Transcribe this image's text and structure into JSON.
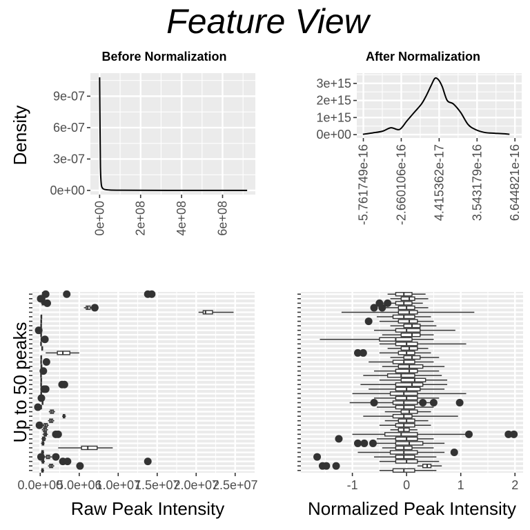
{
  "figure": {
    "title": "Feature View"
  },
  "chart_data": [
    {
      "id": "before-density",
      "type": "line",
      "title": "Before Normalization",
      "xlabel": "",
      "ylabel": "Density",
      "xlim": [
        -45000000.0,
        760000000.0
      ],
      "ylim": [
        -4e-08,
        1.12e-06
      ],
      "x_ticks": [
        0,
        200000000,
        400000000,
        600000000
      ],
      "x_tick_labels": [
        "0e+00",
        "2e+08",
        "4e+08",
        "6e+08"
      ],
      "y_ticks": [
        0,
        3e-07,
        6e-07,
        9e-07
      ],
      "y_tick_labels": [
        "0e+00",
        "3e-07",
        "6e-07",
        "9e-07"
      ],
      "grid": true,
      "x": [
        0,
        2000000,
        4000000,
        8000000,
        15000000,
        25000000,
        50000000,
        100000000,
        200000000,
        400000000,
        600000000,
        720000000
      ],
      "y": [
        1.08e-06,
        6e-07,
        2.2e-07,
        6e-08,
        2e-08,
        9e-09,
        4e-09,
        2e-09,
        1e-09,
        5e-10,
        2e-10,
        0
      ]
    },
    {
      "id": "after-density",
      "type": "line",
      "title": "After Normalization",
      "xlabel": "",
      "ylabel": "",
      "xlim": [
        -6.3e-16,
        7.2e-16
      ],
      "ylim": [
        -200000000000000.0,
        3600000000000000.0
      ],
      "x_ticks": [
        -5.761749e-16,
        -2.660106e-16,
        4.415362e-17,
        3.543179e-16,
        6.644821e-16
      ],
      "x_tick_labels": [
        "-5.761749e-16",
        "-2.660106e-16",
        "4.415362e-17",
        "3.543179e-16",
        "6.644821e-16"
      ],
      "y_ticks": [
        0,
        1000000000000000.0,
        2000000000000000.0,
        3000000000000000.0
      ],
      "y_tick_labels": [
        "0e+00",
        "1e+15",
        "2e+15",
        "3e+15"
      ],
      "grid": true,
      "x": [
        -5.8e-16,
        -5e-16,
        -4.2e-16,
        -3.5e-16,
        -2.8e-16,
        -2.2e-16,
        -1.6e-16,
        -1e-16,
        -6e-17,
        -2e-17,
        1e-17,
        4e-17,
        7e-17,
        1.1e-16,
        1.6e-16,
        2.2e-16,
        2.8e-16,
        3.4e-16,
        4.2e-16,
        5e-16,
        5.8e-16,
        6.2e-16
      ],
      "y": [
        20000000000000.0,
        100000000000000.0,
        200000000000000.0,
        400000000000000.0,
        300000000000000.0,
        800000000000000.0,
        1300000000000000.0,
        1800000000000000.0,
        2300000000000000.0,
        2900000000000000.0,
        3300000000000000.0,
        3200000000000000.0,
        2800000000000000.0,
        2000000000000000.0,
        1800000000000000.0,
        1300000000000000.0,
        600000000000000.0,
        300000000000000.0,
        120000000000000.0,
        80000000000000.0,
        50000000000000.0,
        20000000000000.0
      ]
    },
    {
      "id": "raw-boxplot",
      "type": "boxplot",
      "orientation": "horizontal",
      "title": "",
      "xlabel": "Raw Peak Intensity",
      "ylabel": "Up to 50 peaks",
      "xlim": [
        -1000000.0,
        27500000.0
      ],
      "x_ticks": [
        0,
        5000000,
        10000000,
        15000000,
        20000000,
        25000000
      ],
      "x_tick_labels": [
        "0.0e+00",
        "5.0e+06",
        "1.0e+07",
        "1.5e+07",
        "2.0e+07",
        "2.5e+07"
      ],
      "grid": true,
      "categories": 40,
      "boxes": [
        {
          "min": 200000,
          "q1": 300000,
          "median": 400000,
          "q3": 500000,
          "max": 700000,
          "outliers": [
            700000,
            3400000,
            13800000,
            14300000
          ]
        },
        {
          "min": 100000,
          "q1": 200000,
          "median": 280000,
          "q3": 350000,
          "max": 450000,
          "outliers": [
            60000,
            120000,
            180000
          ]
        },
        {
          "min": 100000,
          "q1": 250000,
          "median": 330000,
          "q3": 420000,
          "max": 550000,
          "outliers": [
            900000
          ]
        },
        {
          "min": 5600000,
          "q1": 5900000,
          "median": 6100000,
          "q3": 6400000,
          "max": 6700000,
          "outliers": [
            7000000
          ]
        },
        {
          "min": 20300000,
          "q1": 20900000,
          "median": 21200000,
          "q3": 22100000,
          "max": 24800000,
          "outliers": []
        },
        {
          "min": 50000,
          "q1": 100000,
          "median": 140000,
          "q3": 190000,
          "max": 240000,
          "outliers": []
        },
        {
          "min": 40000,
          "q1": 80000,
          "median": 120000,
          "q3": 160000,
          "max": 220000,
          "outliers": []
        },
        {
          "min": 30000,
          "q1": 70000,
          "median": 110000,
          "q3": 150000,
          "max": 200000,
          "outliers": []
        },
        {
          "min": 50000,
          "q1": 100000,
          "median": 150000,
          "q3": 200000,
          "max": 300000,
          "outliers": [
            -200000
          ]
        },
        {
          "min": 30000,
          "q1": 70000,
          "median": 110000,
          "q3": 150000,
          "max": 210000,
          "outliers": []
        },
        {
          "min": 50000,
          "q1": 110000,
          "median": 160000,
          "q3": 220000,
          "max": 300000,
          "outliers": [
            600000
          ]
        },
        {
          "min": 20000,
          "q1": 60000,
          "median": 100000,
          "q3": 140000,
          "max": 200000,
          "outliers": []
        },
        {
          "min": 150000,
          "q1": 200000,
          "median": 250000,
          "q3": 300000,
          "max": 350000,
          "outliers": []
        },
        {
          "min": 700000,
          "q1": 2200000,
          "median": 2900000,
          "q3": 3800000,
          "max": 5000000,
          "outliers": []
        },
        {
          "min": 40000,
          "q1": 80000,
          "median": 120000,
          "q3": 160000,
          "max": 220000,
          "outliers": []
        },
        {
          "min": 30000,
          "q1": 70000,
          "median": 110000,
          "q3": 150000,
          "max": 200000,
          "outliers": [
            800000
          ]
        },
        {
          "min": 50000,
          "q1": 100000,
          "median": 150000,
          "q3": 200000,
          "max": 280000,
          "outliers": []
        },
        {
          "min": 30000,
          "q1": 60000,
          "median": 100000,
          "q3": 140000,
          "max": 200000,
          "outliers": [
            400000
          ]
        },
        {
          "min": 20000,
          "q1": 60000,
          "median": 100000,
          "q3": 140000,
          "max": 200000,
          "outliers": []
        },
        {
          "min": 40000,
          "q1": 80000,
          "median": 120000,
          "q3": 160000,
          "max": 220000,
          "outliers": []
        },
        {
          "min": 30000,
          "q1": 70000,
          "median": 110000,
          "q3": 150000,
          "max": 210000,
          "outliers": [
            2800000,
            3100000
          ]
        },
        {
          "min": 50000,
          "q1": 100000,
          "median": 140000,
          "q3": 190000,
          "max": 260000,
          "outliers": [
            500000,
            700000
          ]
        },
        {
          "min": 40000,
          "q1": 80000,
          "median": 120000,
          "q3": 160000,
          "max": 230000,
          "outliers": []
        },
        {
          "min": 30000,
          "q1": 60000,
          "median": 100000,
          "q3": 140000,
          "max": 200000,
          "outliers": [
            150000
          ]
        },
        {
          "min": 200000,
          "q1": 250000,
          "median": 300000,
          "q3": 350000,
          "max": 400000,
          "outliers": []
        },
        {
          "min": 30000,
          "q1": 70000,
          "median": 110000,
          "q3": 150000,
          "max": 200000,
          "outliers": [
            -300000
          ]
        },
        {
          "min": 1100000,
          "q1": 1300000,
          "median": 1500000,
          "q3": 1700000,
          "max": 1900000,
          "outliers": []
        },
        {
          "min": 2800000,
          "q1": 2950000,
          "median": 3050000,
          "q3": 3150000,
          "max": 3300000,
          "outliers": []
        },
        {
          "min": 1000000,
          "q1": 1200000,
          "median": 1400000,
          "q3": 1600000,
          "max": 1800000,
          "outliers": []
        },
        {
          "min": 200000,
          "q1": 500000,
          "median": 700000,
          "q3": 900000,
          "max": 1100000,
          "outliers": [
            -100000
          ]
        },
        {
          "min": 200000,
          "q1": 400000,
          "median": 600000,
          "q3": 800000,
          "max": 1000000,
          "outliers": []
        },
        {
          "min": 300000,
          "q1": 500000,
          "median": 650000,
          "q3": 800000,
          "max": 1000000,
          "outliers": [
            2000000,
            2300000
          ]
        },
        {
          "min": 150000,
          "q1": 300000,
          "median": 450000,
          "q3": 600000,
          "max": 750000,
          "outliers": []
        },
        {
          "min": 100000,
          "q1": 250000,
          "median": 350000,
          "q3": 450000,
          "max": 550000,
          "outliers": []
        },
        {
          "min": 2300000,
          "q1": 5300000,
          "median": 6100000,
          "q3": 7300000,
          "max": 9300000,
          "outliers": []
        },
        {
          "min": 100000,
          "q1": 200000,
          "median": 300000,
          "q3": 400000,
          "max": 500000,
          "outliers": []
        },
        {
          "min": 500000,
          "q1": 800000,
          "median": 1000000,
          "q3": 1200000,
          "max": 1500000,
          "outliers": [
            2000000,
            100000
          ]
        },
        {
          "min": 100000,
          "q1": 250000,
          "median": 350000,
          "q3": 450000,
          "max": 600000,
          "outliers": [
            2900000,
            3500000,
            13800000
          ]
        },
        {
          "min": 1000000,
          "q1": 1200000,
          "median": 1400000,
          "q3": 1600000,
          "max": 1800000,
          "outliers": [
            5100000
          ]
        },
        {
          "min": 100000,
          "q1": 200000,
          "median": 280000,
          "q3": 380000,
          "max": 500000,
          "outliers": []
        }
      ]
    },
    {
      "id": "normalized-boxplot",
      "type": "boxplot",
      "orientation": "horizontal",
      "title": "",
      "xlabel": "Normalized Peak Intensity",
      "ylabel": "",
      "xlim": [
        -1.95,
        2.15
      ],
      "x_ticks": [
        -1,
        0,
        1,
        2
      ],
      "x_tick_labels": [
        "-1",
        "0",
        "1",
        "2"
      ],
      "grid": true,
      "categories": 40,
      "boxes": [
        {
          "min": -0.35,
          "q1": -0.2,
          "median": -0.05,
          "q3": 0.1,
          "max": 0.35,
          "outliers": []
        },
        {
          "min": -0.3,
          "q1": -0.1,
          "median": 0.05,
          "q3": 0.15,
          "max": 0.4,
          "outliers": []
        },
        {
          "min": -0.45,
          "q1": -0.2,
          "median": -0.05,
          "q3": 0.1,
          "max": 0.3,
          "outliers": [
            -0.5,
            -0.35
          ]
        },
        {
          "min": -0.4,
          "q1": -0.15,
          "median": 0,
          "q3": 0.15,
          "max": 0.4,
          "outliers": [
            -0.6,
            -0.45
          ]
        },
        {
          "min": -1.2,
          "q1": -0.15,
          "median": 0.05,
          "q3": 0.2,
          "max": 1.25,
          "outliers": []
        },
        {
          "min": -0.55,
          "q1": -0.25,
          "median": -0.05,
          "q3": 0.15,
          "max": 0.45,
          "outliers": []
        },
        {
          "min": -0.5,
          "q1": -0.15,
          "median": 0.05,
          "q3": 0.2,
          "max": 0.5,
          "outliers": [
            -0.7
          ]
        },
        {
          "min": -0.3,
          "q1": -0.05,
          "median": 0.1,
          "q3": 0.25,
          "max": 0.55,
          "outliers": []
        },
        {
          "min": -0.6,
          "q1": -0.2,
          "median": 0,
          "q3": 0.25,
          "max": 0.9,
          "outliers": []
        },
        {
          "min": -0.45,
          "q1": -0.1,
          "median": 0.1,
          "q3": 0.25,
          "max": 0.5,
          "outliers": []
        },
        {
          "min": -1.6,
          "q1": -0.5,
          "median": -0.2,
          "q3": 0.1,
          "max": 0.5,
          "outliers": []
        },
        {
          "min": -0.5,
          "q1": -0.2,
          "median": 0,
          "q3": 0.2,
          "max": 1.1,
          "outliers": []
        },
        {
          "min": -0.35,
          "q1": -0.1,
          "median": 0.05,
          "q3": 0.2,
          "max": 0.4,
          "outliers": []
        },
        {
          "min": -0.5,
          "q1": -0.15,
          "median": 0,
          "q3": 0.15,
          "max": 0.45,
          "outliers": [
            -0.9,
            -0.8
          ]
        },
        {
          "min": -0.3,
          "q1": -0.05,
          "median": 0.1,
          "q3": 0.25,
          "max": 0.6,
          "outliers": []
        },
        {
          "min": -0.7,
          "q1": -0.25,
          "median": -0.05,
          "q3": 0.15,
          "max": 0.5,
          "outliers": []
        },
        {
          "min": -0.45,
          "q1": -0.15,
          "median": 0.05,
          "q3": 0.3,
          "max": 0.7,
          "outliers": []
        },
        {
          "min": -0.6,
          "q1": -0.2,
          "median": 0.05,
          "q3": 0.2,
          "max": 0.6,
          "outliers": []
        },
        {
          "min": -0.8,
          "q1": -0.35,
          "median": -0.1,
          "q3": 0.15,
          "max": 0.65,
          "outliers": []
        },
        {
          "min": -0.5,
          "q1": -0.1,
          "median": 0.15,
          "q3": 0.35,
          "max": 0.75,
          "outliers": []
        },
        {
          "min": -0.85,
          "q1": -0.2,
          "median": 0.1,
          "q3": 0.3,
          "max": 0.75,
          "outliers": []
        },
        {
          "min": -0.7,
          "q1": -0.2,
          "median": 0,
          "q3": 0.25,
          "max": 0.7,
          "outliers": []
        },
        {
          "min": -1.0,
          "q1": -0.3,
          "median": -0.05,
          "q3": 0.2,
          "max": 1.1,
          "outliers": []
        },
        {
          "min": -0.6,
          "q1": -0.2,
          "median": 0,
          "q3": 0.2,
          "max": 0.6,
          "outliers": []
        },
        {
          "min": -1.05,
          "q1": -0.25,
          "median": -0.05,
          "q3": 0.2,
          "max": 0.45,
          "outliers": [
            -0.6,
            0.3,
            0.5,
            0.98
          ]
        },
        {
          "min": -0.55,
          "q1": -0.2,
          "median": -0.05,
          "q3": 0.15,
          "max": 0.5,
          "outliers": []
        },
        {
          "min": -0.4,
          "q1": -0.1,
          "median": 0.05,
          "q3": 0.2,
          "max": 0.45,
          "outliers": []
        },
        {
          "min": -0.8,
          "q1": -0.25,
          "median": -0.05,
          "q3": 0.1,
          "max": 0.95,
          "outliers": []
        },
        {
          "min": -0.4,
          "q1": -0.15,
          "median": 0,
          "q3": 0.15,
          "max": 0.4,
          "outliers": []
        },
        {
          "min": -0.5,
          "q1": -0.2,
          "median": -0.05,
          "q3": 0.15,
          "max": 0.45,
          "outliers": []
        },
        {
          "min": -0.3,
          "q1": -0.15,
          "median": -0.05,
          "q3": 0.05,
          "max": 0.2,
          "outliers": []
        },
        {
          "min": -1.0,
          "q1": -0.4,
          "median": -0.1,
          "q3": 0.2,
          "max": 1.1,
          "outliers": [
            1.15,
            1.88,
            1.98
          ]
        },
        {
          "min": -0.55,
          "q1": -0.2,
          "median": 0,
          "q3": 0.2,
          "max": 0.5,
          "outliers": [
            -1.25
          ]
        },
        {
          "min": -0.6,
          "q1": -0.2,
          "median": 0.05,
          "q3": 0.3,
          "max": 0.7,
          "outliers": [
            -0.9,
            -0.78,
            -0.62
          ]
        },
        {
          "min": -0.45,
          "q1": -0.2,
          "median": -0.05,
          "q3": 0.1,
          "max": 0.5,
          "outliers": []
        },
        {
          "min": -0.9,
          "q1": -0.3,
          "median": -0.05,
          "q3": 0.2,
          "max": 0.7,
          "outliers": [
            0.88
          ]
        },
        {
          "min": -0.6,
          "q1": -0.2,
          "median": -0.05,
          "q3": 0.15,
          "max": 0.55,
          "outliers": [
            -1.65
          ]
        },
        {
          "min": -0.5,
          "q1": -0.2,
          "median": 0,
          "q3": 0.2,
          "max": 0.6,
          "outliers": []
        },
        {
          "min": 0.2,
          "q1": 0.3,
          "median": 0.38,
          "q3": 0.45,
          "max": 0.65,
          "outliers": [
            -1.55,
            -1.48,
            -1.3
          ]
        },
        {
          "min": -0.5,
          "q1": -0.25,
          "median": -0.05,
          "q3": 0.15,
          "max": 0.55,
          "outliers": []
        }
      ]
    }
  ]
}
